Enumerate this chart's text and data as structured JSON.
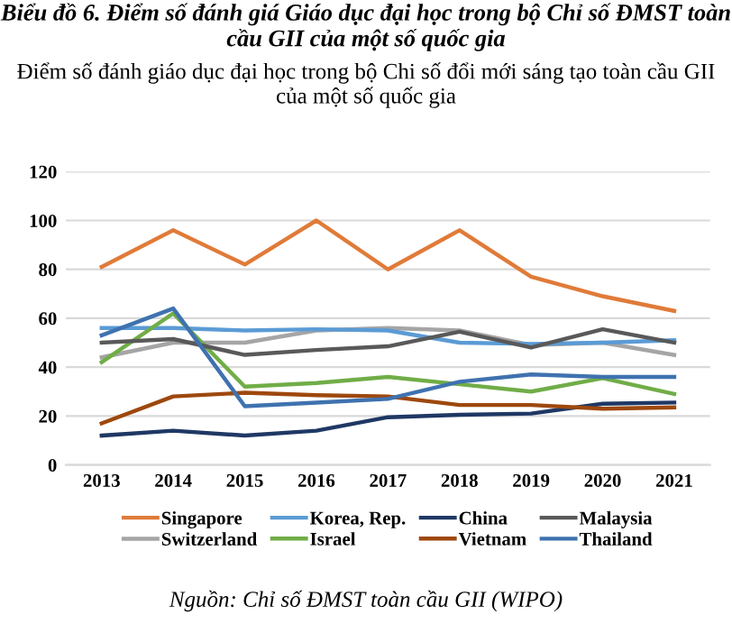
{
  "chart_data": {
    "type": "line",
    "title": "Biểu đồ 6. Điểm số đánh giá Giáo dục đại học trong bộ Chỉ số ĐMST toàn cầu GII của một số quốc gia",
    "subtitle": "Điểm số đánh giáo dục đại học trong bộ Chi số đổi mới sáng tạo toàn cầu GII của một số quốc gia",
    "categories": [
      "2013",
      "2014",
      "2015",
      "2016",
      "2017",
      "2018",
      "2019",
      "2020",
      "2021"
    ],
    "series": [
      {
        "name": "Singapore",
        "color": "#e07b39",
        "values": [
          81,
          96,
          82,
          100,
          80,
          96,
          77,
          69,
          63
        ]
      },
      {
        "name": "Switzerland",
        "color": "#a5a5a5",
        "values": [
          44,
          50,
          50,
          55,
          56,
          55,
          49,
          50,
          45
        ]
      },
      {
        "name": "Korea, Rep.",
        "color": "#5b9bd5",
        "values": [
          56,
          56,
          55,
          55.5,
          55,
          50,
          49.5,
          50,
          51
        ]
      },
      {
        "name": "Israel",
        "color": "#70ad47",
        "values": [
          42,
          62,
          32,
          33.5,
          36,
          33,
          30,
          35.5,
          29
        ]
      },
      {
        "name": "China",
        "color": "#1f3864",
        "values": [
          12,
          14,
          12,
          14,
          19.5,
          20.5,
          21,
          25,
          25.5
        ]
      },
      {
        "name": "Vietnam",
        "color": "#9e480e",
        "values": [
          17,
          28,
          29.5,
          28.5,
          28,
          24.5,
          24.5,
          23,
          23.5
        ]
      },
      {
        "name": "Malaysia",
        "color": "#595959",
        "values": [
          50,
          51.5,
          45,
          47,
          48.5,
          54.5,
          48,
          55.5,
          50
        ]
      },
      {
        "name": "Thailand",
        "color": "#3f72af",
        "values": [
          53,
          64,
          24,
          25.5,
          27,
          34,
          37,
          36,
          36
        ]
      }
    ],
    "ylim": [
      0,
      120
    ],
    "yticks": [
      0,
      20,
      40,
      60,
      80,
      100,
      120
    ],
    "grid": "y",
    "legend": "bottom",
    "marker": "none",
    "line_style": "solid",
    "annotations": [
      "Nguồn: Chỉ số ĐMST toàn cầu GII (WIPO)"
    ]
  }
}
